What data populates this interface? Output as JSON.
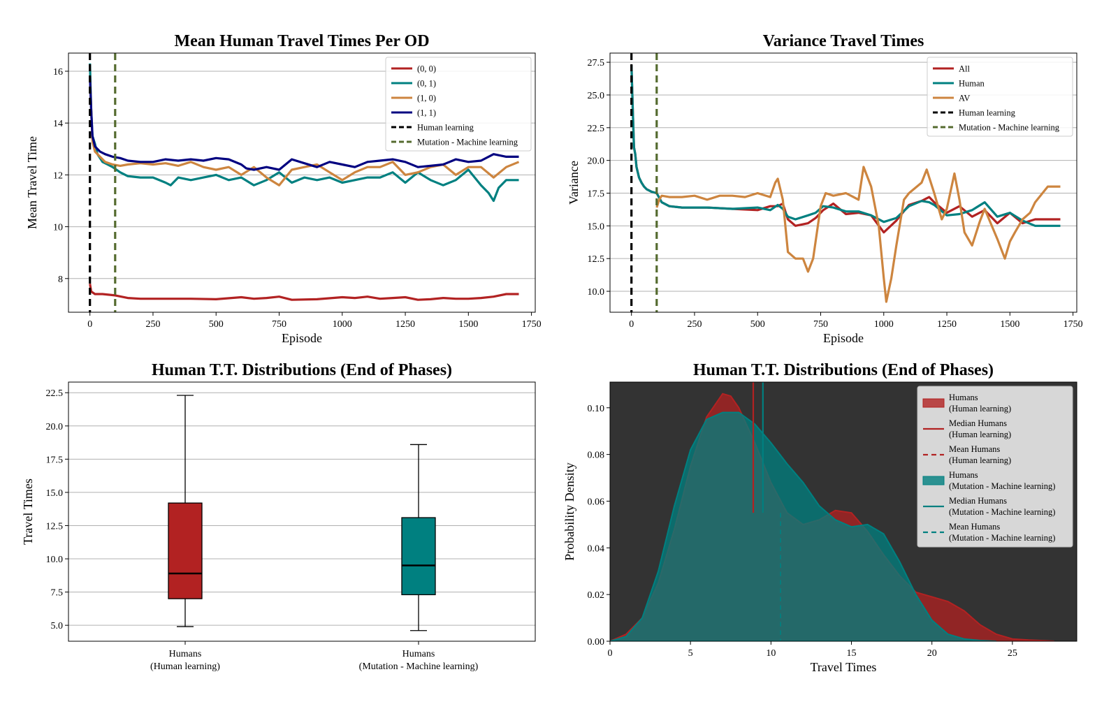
{
  "colors": {
    "red": "#b22222",
    "teal": "#008080",
    "orange": "#cd853f",
    "navy": "#000080",
    "black": "#000000",
    "olive": "#556b2f",
    "dark_bg": "#333333",
    "grid": "#b0b0b0"
  },
  "chart_data": [
    {
      "id": "mean_tt",
      "type": "line",
      "title": "Mean Human Travel Times Per OD",
      "xlabel": "Episode",
      "ylabel": "Mean Travel Time",
      "xlim": [
        -85,
        1765
      ],
      "ylim": [
        6.7,
        16.7
      ],
      "xticks": [
        0,
        250,
        500,
        750,
        1000,
        1250,
        1500,
        1750
      ],
      "yticks": [
        8,
        10,
        12,
        14,
        16
      ],
      "grid": "y",
      "legend": "top-right",
      "series": [
        {
          "name": "(0, 0)",
          "color": "red",
          "x": [
            0,
            5,
            20,
            50,
            100,
            150,
            200,
            300,
            400,
            500,
            600,
            650,
            700,
            750,
            800,
            900,
            1000,
            1050,
            1100,
            1150,
            1200,
            1250,
            1300,
            1350,
            1400,
            1450,
            1500,
            1550,
            1600,
            1650,
            1700
          ],
          "y": [
            7.8,
            7.5,
            7.4,
            7.4,
            7.35,
            7.25,
            7.22,
            7.22,
            7.22,
            7.2,
            7.28,
            7.22,
            7.25,
            7.3,
            7.18,
            7.2,
            7.28,
            7.25,
            7.3,
            7.22,
            7.25,
            7.28,
            7.18,
            7.2,
            7.25,
            7.22,
            7.22,
            7.25,
            7.3,
            7.4,
            7.4
          ]
        },
        {
          "name": "(0, 1)",
          "color": "teal",
          "x": [
            0,
            5,
            10,
            20,
            30,
            50,
            70,
            90,
            120,
            150,
            200,
            250,
            300,
            320,
            350,
            400,
            450,
            500,
            550,
            600,
            650,
            700,
            750,
            800,
            850,
            900,
            950,
            1000,
            1050,
            1100,
            1150,
            1200,
            1250,
            1300,
            1350,
            1400,
            1450,
            1500,
            1550,
            1580,
            1600,
            1620,
            1650,
            1700
          ],
          "y": [
            16.3,
            14.5,
            13.5,
            13.2,
            12.8,
            12.5,
            12.4,
            12.3,
            12.1,
            11.95,
            11.9,
            11.9,
            11.7,
            11.6,
            11.9,
            11.8,
            11.9,
            12.0,
            11.8,
            11.9,
            11.6,
            11.8,
            12.1,
            11.7,
            11.9,
            11.8,
            11.9,
            11.7,
            11.8,
            11.9,
            11.9,
            12.1,
            11.7,
            12.1,
            11.8,
            11.6,
            11.8,
            12.2,
            11.6,
            11.3,
            11.0,
            11.5,
            11.8,
            11.8
          ]
        },
        {
          "name": "(1, 0)",
          "color": "orange",
          "x": [
            0,
            5,
            10,
            20,
            40,
            60,
            90,
            120,
            150,
            200,
            250,
            300,
            350,
            400,
            450,
            500,
            550,
            600,
            650,
            700,
            750,
            800,
            850,
            900,
            950,
            1000,
            1050,
            1100,
            1150,
            1200,
            1250,
            1300,
            1350,
            1400,
            1450,
            1500,
            1550,
            1600,
            1650,
            1700
          ],
          "y": [
            15.8,
            14.5,
            13.3,
            12.9,
            12.7,
            12.5,
            12.4,
            12.35,
            12.4,
            12.45,
            12.4,
            12.45,
            12.35,
            12.5,
            12.3,
            12.2,
            12.3,
            12.0,
            12.3,
            11.9,
            11.6,
            12.2,
            12.3,
            12.4,
            12.1,
            11.8,
            12.1,
            12.3,
            12.3,
            12.5,
            12.0,
            12.1,
            12.3,
            12.4,
            12.0,
            12.3,
            12.3,
            11.9,
            12.3,
            12.5
          ]
        },
        {
          "name": "(1, 1)",
          "color": "navy",
          "x": [
            0,
            5,
            10,
            20,
            40,
            60,
            90,
            120,
            150,
            200,
            250,
            300,
            350,
            400,
            450,
            500,
            550,
            600,
            620,
            650,
            700,
            750,
            800,
            850,
            900,
            950,
            1000,
            1050,
            1100,
            1150,
            1200,
            1250,
            1300,
            1350,
            1400,
            1450,
            1500,
            1550,
            1600,
            1650,
            1700
          ],
          "y": [
            15.8,
            14.5,
            13.5,
            13.1,
            12.9,
            12.8,
            12.7,
            12.65,
            12.55,
            12.5,
            12.5,
            12.6,
            12.55,
            12.6,
            12.55,
            12.65,
            12.6,
            12.4,
            12.25,
            12.2,
            12.3,
            12.2,
            12.6,
            12.45,
            12.3,
            12.5,
            12.4,
            12.3,
            12.5,
            12.55,
            12.6,
            12.5,
            12.3,
            12.35,
            12.4,
            12.6,
            12.5,
            12.55,
            12.8,
            12.7,
            12.7
          ]
        }
      ],
      "vlines": [
        {
          "name": "Human learning",
          "x": 0,
          "color": "black"
        },
        {
          "name": "Mutation - Machine learning",
          "x": 100,
          "color": "olive"
        }
      ]
    },
    {
      "id": "variance_tt",
      "type": "line",
      "title": "Variance Travel Times",
      "xlabel": "Episode",
      "ylabel": "Variance",
      "xlim": [
        -85,
        1765
      ],
      "ylim": [
        8.4,
        28.2
      ],
      "xticks": [
        0,
        250,
        500,
        750,
        1000,
        1250,
        1500,
        1750
      ],
      "yticks": [
        10.0,
        12.5,
        15.0,
        17.5,
        20.0,
        22.5,
        25.0,
        27.5
      ],
      "grid": "y",
      "legend": "top-right",
      "series": [
        {
          "name": "All",
          "color": "red",
          "x": [
            0,
            5,
            10,
            15,
            20,
            30,
            40,
            50,
            60,
            80,
            100,
            120,
            150,
            200,
            300,
            400,
            500,
            550,
            580,
            600,
            620,
            650,
            700,
            730,
            760,
            800,
            850,
            900,
            950,
            1000,
            1050,
            1100,
            1150,
            1180,
            1200,
            1250,
            1300,
            1350,
            1400,
            1450,
            1500,
            1550,
            1600,
            1650,
            1700
          ],
          "y": [
            27.3,
            24.0,
            21.0,
            20.5,
            19.5,
            18.7,
            18.3,
            18.0,
            17.8,
            17.6,
            17.5,
            16.8,
            16.5,
            16.4,
            16.4,
            16.3,
            16.2,
            16.5,
            16.5,
            16.7,
            15.5,
            15.0,
            15.2,
            15.6,
            16.2,
            16.7,
            15.9,
            16.0,
            15.8,
            14.5,
            15.4,
            16.6,
            16.9,
            17.2,
            16.8,
            16.0,
            16.5,
            15.7,
            16.2,
            15.2,
            16.0,
            15.2,
            15.5,
            15.5,
            15.5
          ]
        },
        {
          "name": "Human",
          "color": "teal",
          "x": [
            0,
            5,
            10,
            15,
            20,
            30,
            40,
            50,
            60,
            80,
            100,
            120,
            150,
            200,
            300,
            400,
            500,
            550,
            580,
            600,
            620,
            650,
            700,
            730,
            760,
            800,
            850,
            900,
            950,
            1000,
            1050,
            1100,
            1150,
            1180,
            1200,
            1250,
            1300,
            1350,
            1400,
            1450,
            1500,
            1550,
            1600,
            1650,
            1700
          ],
          "y": [
            27.3,
            24.0,
            21.0,
            20.5,
            19.5,
            18.7,
            18.3,
            18.0,
            17.8,
            17.6,
            17.5,
            16.8,
            16.5,
            16.4,
            16.4,
            16.3,
            16.4,
            16.2,
            16.6,
            16.3,
            15.7,
            15.5,
            15.8,
            16.0,
            16.5,
            16.4,
            16.1,
            16.1,
            15.8,
            15.3,
            15.6,
            16.5,
            16.9,
            16.8,
            16.6,
            15.8,
            15.9,
            16.2,
            16.8,
            15.7,
            16.0,
            15.4,
            15.0,
            15.0,
            15.0
          ]
        },
        {
          "name": "AV",
          "color": "orange",
          "x": [
            100,
            110,
            120,
            150,
            200,
            250,
            300,
            350,
            400,
            450,
            500,
            550,
            570,
            580,
            600,
            620,
            650,
            680,
            700,
            720,
            750,
            770,
            800,
            850,
            880,
            900,
            920,
            950,
            980,
            1000,
            1010,
            1030,
            1050,
            1080,
            1100,
            1150,
            1170,
            1200,
            1230,
            1250,
            1280,
            1300,
            1320,
            1350,
            1380,
            1400,
            1450,
            1480,
            1500,
            1520,
            1550,
            1580,
            1600,
            1650,
            1700
          ],
          "y": [
            16.4,
            17.0,
            17.3,
            17.2,
            17.2,
            17.3,
            17.0,
            17.3,
            17.3,
            17.2,
            17.5,
            17.2,
            18.3,
            18.6,
            17.0,
            13.0,
            12.5,
            12.5,
            11.5,
            12.5,
            16.5,
            17.5,
            17.3,
            17.5,
            17.2,
            17.0,
            19.5,
            18.0,
            15.0,
            11.0,
            9.2,
            11.0,
            13.5,
            17.0,
            17.5,
            18.3,
            19.3,
            17.5,
            15.5,
            16.3,
            19.0,
            17.0,
            14.5,
            13.5,
            15.3,
            16.3,
            14.0,
            12.5,
            13.8,
            14.5,
            15.5,
            16.0,
            16.8,
            18.0,
            18.0
          ]
        }
      ],
      "vlines": [
        {
          "name": "Human learning",
          "x": 0,
          "color": "black"
        },
        {
          "name": "Mutation - Machine learning",
          "x": 100,
          "color": "olive"
        }
      ]
    },
    {
      "id": "boxplot",
      "type": "box",
      "title": "Human T.T. Distributions (End of Phases)",
      "xlabel": "",
      "ylabel": "Travel Times",
      "ylim": [
        3.8,
        23.3
      ],
      "yticks": [
        5.0,
        7.5,
        10.0,
        12.5,
        15.0,
        17.5,
        20.0,
        22.5
      ],
      "grid": "y",
      "boxes": [
        {
          "label_line1": "Humans",
          "label_line2": "(Human learning)",
          "color": "red",
          "whisker_low": 4.9,
          "q1": 7.0,
          "median": 8.9,
          "q3": 14.2,
          "whisker_high": 22.3
        },
        {
          "label_line1": "Humans",
          "label_line2": "(Mutation - Machine learning)",
          "color": "teal",
          "whisker_low": 4.6,
          "q1": 7.3,
          "median": 9.5,
          "q3": 13.1,
          "whisker_high": 18.6
        }
      ]
    },
    {
      "id": "kde",
      "type": "area",
      "title": "Human T.T. Distributions (End of Phases)",
      "xlabel": "Travel Times",
      "ylabel": "Probability Density",
      "xlim": [
        0,
        29
      ],
      "ylim": [
        0,
        0.111
      ],
      "xticks": [
        0,
        5,
        10,
        15,
        20,
        25
      ],
      "yticks": [
        0.0,
        0.02,
        0.04,
        0.06,
        0.08,
        0.1
      ],
      "legend": "top-right",
      "series": [
        {
          "name": "Humans",
          "phase": "(Human learning)",
          "color": "red",
          "x": [
            0,
            1,
            2,
            3,
            4,
            5,
            6,
            7,
            7.5,
            8,
            9,
            10,
            11,
            12,
            13,
            14,
            15,
            16,
            17,
            18,
            19,
            20,
            21,
            22,
            23,
            24,
            25,
            26,
            27,
            27.6
          ],
          "y": [
            0.0,
            0.003,
            0.01,
            0.025,
            0.048,
            0.075,
            0.096,
            0.106,
            0.105,
            0.1,
            0.085,
            0.068,
            0.055,
            0.05,
            0.052,
            0.056,
            0.055,
            0.047,
            0.037,
            0.028,
            0.021,
            0.019,
            0.017,
            0.013,
            0.007,
            0.003,
            0.001,
            0.0005,
            0.0002,
            0.0
          ]
        },
        {
          "name": "Humans",
          "phase": "(Mutation - Machine learning)",
          "color": "teal",
          "x": [
            0,
            1,
            2,
            3,
            4,
            5,
            6,
            7,
            8,
            9,
            10,
            11,
            12,
            13,
            14,
            15,
            16,
            17,
            18,
            19,
            20,
            21,
            22,
            23,
            24
          ],
          "y": [
            0.0,
            0.002,
            0.01,
            0.03,
            0.058,
            0.082,
            0.095,
            0.098,
            0.098,
            0.093,
            0.085,
            0.076,
            0.068,
            0.058,
            0.052,
            0.049,
            0.05,
            0.046,
            0.034,
            0.02,
            0.009,
            0.003,
            0.001,
            0.0003,
            0.0
          ]
        }
      ],
      "markers": [
        {
          "name": "Median Humans",
          "phase": "(Human learning)",
          "color": "red",
          "style": "solid",
          "x": 8.9,
          "y_top": 0.111,
          "y_bottom": 0.055
        },
        {
          "name": "Mean Humans",
          "phase": "(Human learning)",
          "color": "red",
          "style": "dashed",
          "x": 10.6,
          "y_top": 0.055,
          "y_bottom": 0.0
        },
        {
          "name": "Median Humans",
          "phase": "(Mutation - Machine learning)",
          "color": "teal",
          "style": "solid",
          "x": 9.5,
          "y_top": 0.111,
          "y_bottom": 0.055
        },
        {
          "name": "Mean Humans",
          "phase": "(Mutation - Machine learning)",
          "color": "teal",
          "style": "dashed",
          "x": 10.6,
          "y_top": 0.055,
          "y_bottom": 0.0
        }
      ]
    }
  ]
}
